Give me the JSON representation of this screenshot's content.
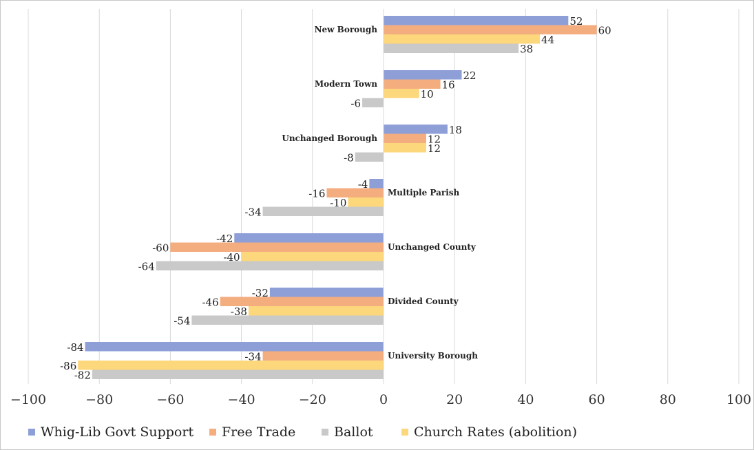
{
  "chart_data": {
    "type": "bar",
    "orientation": "horizontal",
    "categories": [
      "New Borough",
      "Modern Town",
      "Unchanged Borough",
      "Multiple Parish",
      "Unchanged County",
      "Divided County",
      "University Borough"
    ],
    "series": [
      {
        "name": "Whig-Lib Govt Support",
        "color": "#8e9fd8",
        "values": [
          52,
          22,
          18,
          -4,
          -42,
          -32,
          -84
        ]
      },
      {
        "name": "Free Trade",
        "color": "#f4ad7f",
        "values": [
          60,
          16,
          12,
          -16,
          -60,
          -46,
          -34
        ]
      },
      {
        "name": "Church Rates (abolition)",
        "color": "#fdd77c",
        "values": [
          44,
          10,
          12,
          -10,
          -40,
          -38,
          -86
        ]
      },
      {
        "name": "Ballot",
        "color": "#c9c9c9",
        "values": [
          38,
          -6,
          -8,
          -34,
          -64,
          -54,
          -82
        ]
      }
    ],
    "xlim": [
      -100,
      100
    ],
    "xticks": [
      "−100",
      "−80",
      "−60",
      "−40",
      "−20",
      "0",
      "20",
      "40",
      "60",
      "80",
      "100"
    ],
    "grid": true,
    "legend_position": "bottom",
    "legend_order": [
      "Whig-Lib Govt Support",
      "Free Trade",
      "Ballot",
      "Church Rates (abolition)"
    ]
  },
  "legend": {
    "items": [
      {
        "label": "Whig-Lib Govt Support",
        "color": "#8e9fd8"
      },
      {
        "label": "Free Trade",
        "color": "#f4ad7f"
      },
      {
        "label": "Ballot",
        "color": "#c9c9c9"
      },
      {
        "label": "Church Rates (abolition)",
        "color": "#fdd77c"
      }
    ]
  }
}
